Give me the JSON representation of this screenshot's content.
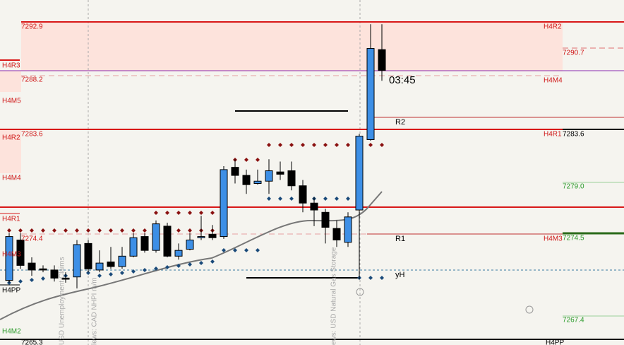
{
  "left_labels": [
    "7292.9",
    "H4R3",
    "7288.2",
    "H4M5",
    "H4R2",
    "7283.6",
    "H4M4",
    "H4R1",
    "7274.4",
    "H4M3",
    "H4PP",
    "H4M2",
    "7265.3"
  ],
  "right_labels": [
    "H4R2",
    "7290.7",
    "H4M4",
    "H4R1",
    "7283.6",
    "7279.0",
    "H4M3",
    "7274.5",
    "7267.4",
    "H4PP"
  ],
  "pivot_labels": [
    "R2",
    "R1",
    "yH"
  ],
  "timer": "03:45",
  "news": [
    "USD Unemployment Claims",
    "lews: CAD NHPI m/m",
    "ews: USD Natural Gas Storage"
  ],
  "ylim": [
    7264.9,
    7294.8
  ],
  "candles": [
    [
      7270.5,
      7274.6,
      7270.3,
      7274.3
    ],
    [
      7274.0,
      7274.6,
      7271.5,
      7271.8
    ],
    [
      7272.0,
      7272.5,
      7270.9,
      7271.4
    ],
    [
      7271.5,
      7271.8,
      7271.2,
      7271.4
    ],
    [
      7271.4,
      7271.8,
      7270.4,
      7270.7
    ],
    [
      7270.7,
      7271.2,
      7270.3,
      7270.6
    ],
    [
      7270.8,
      7274.0,
      7269.8,
      7273.6
    ],
    [
      7273.7,
      7274.0,
      7271.2,
      7271.5
    ],
    [
      7271.4,
      7273.1,
      7271.2,
      7272.0
    ],
    [
      7272.1,
      7273.4,
      7271.5,
      7271.7
    ],
    [
      7271.7,
      7273.4,
      7271.5,
      7272.6
    ],
    [
      7272.6,
      7274.6,
      7272.5,
      7274.2
    ],
    [
      7274.3,
      7274.6,
      7272.9,
      7273.1
    ],
    [
      7273.1,
      7275.7,
      7272.9,
      7275.4
    ],
    [
      7275.2,
      7275.5,
      7272.5,
      7272.6
    ],
    [
      7272.6,
      7273.7,
      7272.3,
      7273.1
    ],
    [
      7273.2,
      7274.6,
      7273.1,
      7274.0
    ],
    [
      7274.2,
      7276.1,
      7274.0,
      7274.3
    ],
    [
      7274.5,
      7275.3,
      7274.0,
      7274.2
    ],
    [
      7274.3,
      7280.4,
      7274.1,
      7280.1
    ],
    [
      7280.3,
      7281.0,
      7278.9,
      7279.6
    ],
    [
      7279.6,
      7280.1,
      7278.0,
      7278.8
    ],
    [
      7278.9,
      7280.1,
      7278.8,
      7279.1
    ],
    [
      7279.1,
      7281.0,
      7278.0,
      7280.0
    ],
    [
      7279.9,
      7280.8,
      7279.2,
      7279.7
    ],
    [
      7280.0,
      7280.8,
      7278.3,
      7278.7
    ],
    [
      7278.7,
      7279.2,
      7276.4,
      7277.2
    ],
    [
      7277.2,
      7277.7,
      7275.2,
      7276.6
    ],
    [
      7276.4,
      7276.7,
      7273.7,
      7275.1
    ],
    [
      7275.0,
      7275.7,
      7273.4,
      7274.0
    ],
    [
      7273.8,
      7276.4,
      7273.4,
      7276.0
    ],
    [
      7276.6,
      7283.2,
      7270.6,
      7283.0
    ],
    [
      7282.7,
      7292.7,
      7282.6,
      7290.6
    ],
    [
      7290.5,
      7292.7,
      7287.8,
      7288.7
    ]
  ]
}
